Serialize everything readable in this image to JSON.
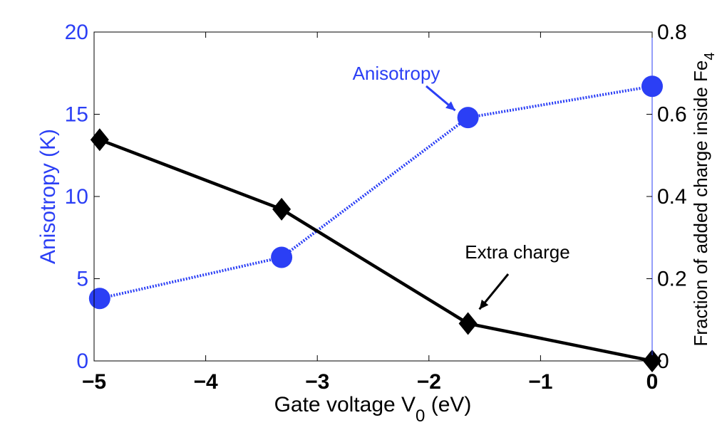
{
  "chart_data": {
    "type": "line",
    "x": [
      -4.95,
      -3.32,
      -1.65,
      0
    ],
    "xlim": [
      -5,
      0
    ],
    "xticks": [
      -5,
      -4,
      -3,
      -2,
      -1,
      0
    ],
    "xtick_labels": [
      "−5",
      "−4",
      "−3",
      "−2",
      "−1",
      "0"
    ],
    "xlabel_main": "Gate voltage V",
    "xlabel_sub": "0",
    "xlabel_tail": " (eV)",
    "series": [
      {
        "name": "Anisotropy",
        "axis": "left",
        "color": "#2b3ff5",
        "values": [
          3.8,
          6.3,
          14.8,
          16.7
        ]
      },
      {
        "name": "Extra charge",
        "axis": "right",
        "color": "#000000",
        "values": [
          0.538,
          0.369,
          0.091,
          0.0
        ]
      }
    ],
    "left_axis": {
      "label": "Anisotropy (K)",
      "ylim": [
        0,
        20
      ],
      "ticks": [
        0,
        5,
        10,
        15,
        20
      ],
      "tick_labels": [
        "0",
        "5",
        "10",
        "15",
        "20"
      ],
      "color": "#2b3ff5"
    },
    "right_axis": {
      "label_main": "Fraction of added charge inside Fe",
      "label_sub": "4",
      "ylim": [
        0,
        0.8
      ],
      "ticks": [
        0,
        0.2,
        0.4,
        0.6,
        0.8
      ],
      "tick_labels": [
        "0",
        "0.2",
        "0.4",
        "0.6",
        "0.8"
      ],
      "color": "#000000"
    },
    "annotations": [
      {
        "text": "Anisotropy",
        "color": "#2b3ff5",
        "target_series": 0,
        "target_index": 2
      },
      {
        "text": "Extra charge",
        "color": "#000000",
        "target_series": 1,
        "target_index": 2
      }
    ]
  }
}
